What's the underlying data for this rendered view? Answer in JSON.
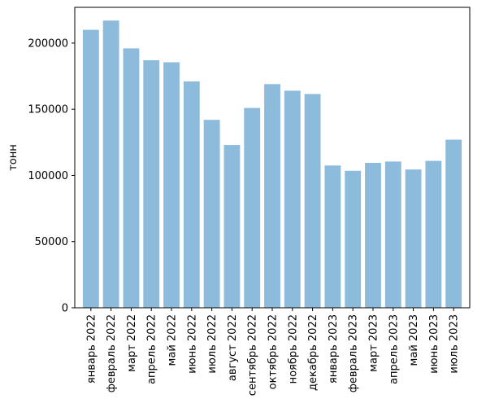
{
  "chart_data": {
    "type": "bar",
    "title": "",
    "xlabel": "",
    "ylabel": "тонн",
    "categories": [
      "январь 2022",
      "февраль 2022",
      "март 2022",
      "апрель 2022",
      "май 2022",
      "июнь 2022",
      "июль 2022",
      "август 2022",
      "сентябрь 2022",
      "октябрь 2022",
      "ноябрь 2022",
      "декабрь 2022",
      "январь 2023",
      "февраль 2023",
      "март 2023",
      "апрель 2023",
      "май 2023",
      "июнь 2023",
      "июль 2023"
    ],
    "values": [
      210000,
      217000,
      196000,
      187000,
      185500,
      171000,
      142000,
      123000,
      151000,
      169000,
      164000,
      161500,
      107500,
      103500,
      109500,
      110500,
      104500,
      111000,
      127000
    ],
    "ylim": [
      0,
      227000
    ],
    "yticks": [
      0,
      50000,
      100000,
      150000,
      200000
    ],
    "bar_color": "#8dbbdc",
    "grid": false,
    "legend": "none"
  }
}
